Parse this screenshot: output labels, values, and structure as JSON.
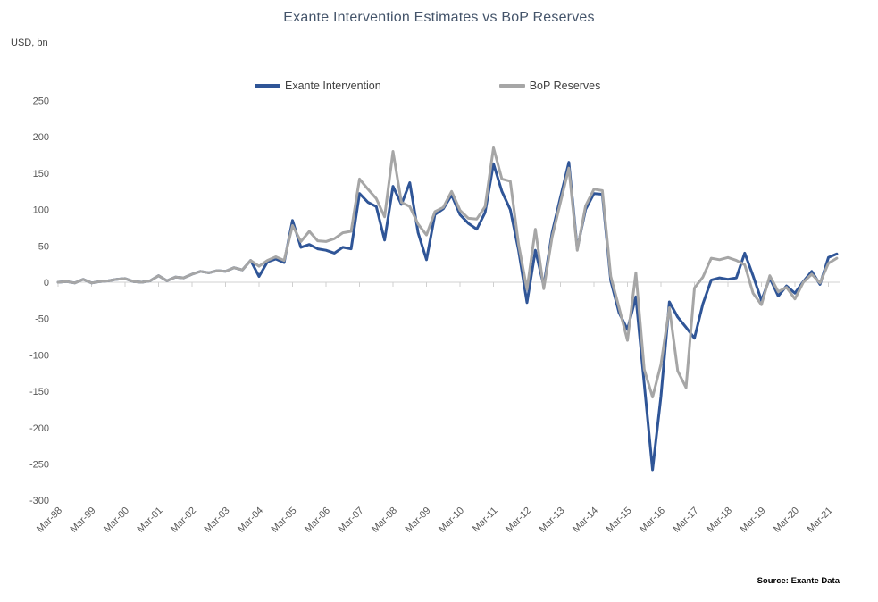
{
  "title": "Exante Intervention Estimates vs BoP Reserves",
  "y_axis_unit_label": "USD, bn",
  "source_note": "Source: Exante Data",
  "colors": {
    "exante_line": "#2F5597",
    "bop_line": "#A6A6A6",
    "title_text": "#44546A",
    "axis_text": "#595959",
    "axis_line": "#D0D0D0"
  },
  "legend": [
    {
      "label": "Exante Intervention",
      "color": "#2F5597"
    },
    {
      "label": "BoP Reserves",
      "color": "#A6A6A6"
    }
  ],
  "chart_data": {
    "type": "line",
    "frequency": "quarterly",
    "x": [
      "Mar-98",
      "Jun-98",
      "Sep-98",
      "Dec-98",
      "Mar-99",
      "Jun-99",
      "Sep-99",
      "Dec-99",
      "Mar-00",
      "Jun-00",
      "Sep-00",
      "Dec-00",
      "Mar-01",
      "Jun-01",
      "Sep-01",
      "Dec-01",
      "Mar-02",
      "Jun-02",
      "Sep-02",
      "Dec-02",
      "Mar-03",
      "Jun-03",
      "Sep-03",
      "Dec-03",
      "Mar-04",
      "Jun-04",
      "Sep-04",
      "Dec-04",
      "Mar-05",
      "Jun-05",
      "Sep-05",
      "Dec-05",
      "Mar-06",
      "Jun-06",
      "Sep-06",
      "Dec-06",
      "Mar-07",
      "Jun-07",
      "Sep-07",
      "Dec-07",
      "Mar-08",
      "Jun-08",
      "Sep-08",
      "Dec-08",
      "Mar-09",
      "Jun-09",
      "Sep-09",
      "Dec-09",
      "Mar-10",
      "Jun-10",
      "Sep-10",
      "Dec-10",
      "Mar-11",
      "Jun-11",
      "Sep-11",
      "Dec-11",
      "Mar-12",
      "Jun-12",
      "Sep-12",
      "Dec-12",
      "Mar-13",
      "Jun-13",
      "Sep-13",
      "Dec-13",
      "Mar-14",
      "Jun-14",
      "Sep-14",
      "Dec-14",
      "Mar-15",
      "Jun-15",
      "Sep-15",
      "Dec-15",
      "Mar-16",
      "Jun-16",
      "Sep-16",
      "Dec-16",
      "Mar-17",
      "Jun-17",
      "Sep-17",
      "Dec-17",
      "Mar-18",
      "Jun-18",
      "Sep-18",
      "Dec-18",
      "Mar-19",
      "Jun-19",
      "Sep-19",
      "Dec-19",
      "Mar-20",
      "Jun-20",
      "Sep-20",
      "Dec-20",
      "Mar-21",
      "Jun-21"
    ],
    "x_tick_labels": [
      "Mar-98",
      "Mar-99",
      "Mar-00",
      "Mar-01",
      "Mar-02",
      "Mar-03",
      "Mar-04",
      "Mar-05",
      "Mar-06",
      "Mar-07",
      "Mar-08",
      "Mar-09",
      "Mar-10",
      "Mar-11",
      "Mar-12",
      "Mar-13",
      "Mar-14",
      "Mar-15",
      "Mar-16",
      "Mar-17",
      "Mar-18",
      "Mar-19",
      "Mar-20",
      "Mar-21"
    ],
    "series": [
      {
        "name": "Exante Intervention",
        "color": "#2F5597",
        "values": [
          0,
          1,
          -1,
          4,
          -1,
          1,
          2,
          4,
          5,
          1,
          0,
          2,
          9,
          2,
          7,
          6,
          11,
          15,
          13,
          16,
          15,
          20,
          17,
          30,
          8,
          28,
          32,
          27,
          85,
          48,
          52,
          46,
          44,
          40,
          48,
          46,
          122,
          110,
          104,
          58,
          132,
          107,
          137,
          68,
          31,
          93,
          101,
          120,
          93,
          81,
          73,
          96,
          163,
          125,
          100,
          44,
          -28,
          44,
          -5,
          68,
          117,
          165,
          46,
          100,
          122,
          121,
          2,
          -42,
          -65,
          -20,
          -140,
          -258,
          -157,
          -27,
          -48,
          -62,
          -77,
          -30,
          3,
          6,
          4,
          6,
          40,
          9,
          -25,
          6,
          -19,
          -5,
          -15,
          1,
          15,
          -3,
          34,
          39
        ]
      },
      {
        "name": "BoP Reserves",
        "color": "#A6A6A6",
        "values": [
          0,
          1,
          -1,
          4,
          -1,
          1,
          2,
          4,
          5,
          1,
          0,
          2,
          9,
          2,
          7,
          6,
          11,
          15,
          13,
          16,
          15,
          20,
          17,
          30,
          22,
          30,
          35,
          30,
          78,
          56,
          70,
          57,
          56,
          60,
          68,
          70,
          142,
          128,
          115,
          90,
          180,
          110,
          104,
          80,
          65,
          97,
          103,
          125,
          99,
          88,
          87,
          104,
          185,
          142,
          139,
          52,
          -10,
          73,
          -9,
          62,
          110,
          157,
          44,
          105,
          128,
          126,
          8,
          -35,
          -80,
          13,
          -120,
          -158,
          -113,
          -35,
          -122,
          -145,
          -8,
          7,
          33,
          31,
          34,
          30,
          24,
          -15,
          -31,
          9,
          -13,
          -7,
          -23,
          0,
          11,
          -1,
          26,
          33
        ]
      }
    ],
    "ylim": [
      -300,
      250
    ],
    "y_ticks": [
      250,
      200,
      150,
      100,
      50,
      0,
      -50,
      -100,
      -150,
      -200,
      -250,
      -300
    ],
    "grid": "zero-line-only",
    "legend_position": "top"
  }
}
